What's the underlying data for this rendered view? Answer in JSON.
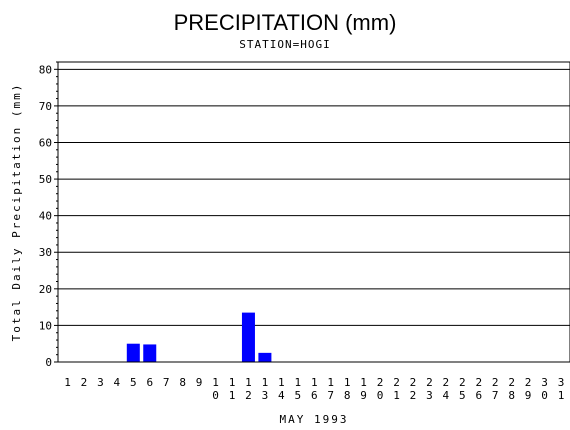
{
  "chart_data": {
    "type": "bar",
    "title": "PRECIPITATION (mm)",
    "subtitle": "STATION=HOGI",
    "xlabel": "MAY 1993",
    "ylabel": "Total Daily Precipitation (mm)",
    "ylim": [
      0,
      82
    ],
    "yticks": [
      0,
      10,
      20,
      30,
      40,
      50,
      60,
      70,
      80
    ],
    "grid": true,
    "bar_color": "#0000ff",
    "categories": [
      "1",
      "2",
      "3",
      "4",
      "5",
      "6",
      "7",
      "8",
      "9",
      "10",
      "11",
      "12",
      "13",
      "14",
      "15",
      "16",
      "17",
      "18",
      "19",
      "20",
      "21",
      "22",
      "23",
      "24",
      "25",
      "26",
      "27",
      "28",
      "29",
      "30",
      "31"
    ],
    "values": [
      0,
      0,
      0,
      0,
      5,
      4.8,
      0,
      0,
      0,
      0,
      0,
      13.5,
      2.5,
      0,
      0,
      0,
      0,
      0,
      0,
      0,
      0,
      0,
      0,
      0,
      0,
      0,
      0,
      0,
      0,
      0,
      0
    ]
  }
}
